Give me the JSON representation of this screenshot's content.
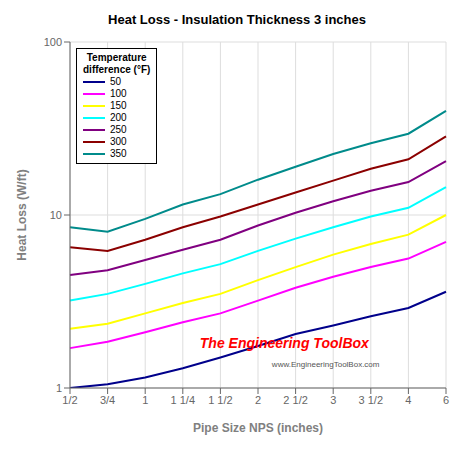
{
  "chart_data": {
    "type": "line",
    "title": "Heat Loss - Insulation Thickness 3 inches",
    "x_label": "Pipe Size NPS (inches)",
    "y_label": "Heat Loss (W/ft)",
    "categories": [
      "1/2",
      "3/4",
      "1",
      "1 1/4",
      "1 1/2",
      "2",
      "2 1/2",
      "3",
      "3 1/2",
      "4",
      "6"
    ],
    "series": [
      {
        "name": "50",
        "color": "#00008B",
        "values": [
          1.0,
          1.05,
          1.15,
          1.3,
          1.5,
          1.75,
          2.05,
          2.3,
          2.6,
          2.9,
          3.6
        ]
      },
      {
        "name": "100",
        "color": "#FF00FF",
        "values": [
          1.7,
          1.85,
          2.1,
          2.4,
          2.7,
          3.2,
          3.8,
          4.4,
          5.0,
          5.6,
          7.0
        ]
      },
      {
        "name": "150",
        "color": "#FFFF00",
        "values": [
          2.2,
          2.35,
          2.7,
          3.1,
          3.5,
          4.2,
          5.0,
          5.9,
          6.8,
          7.7,
          10.0
        ]
      },
      {
        "name": "200",
        "color": "#00FFFF",
        "values": [
          3.2,
          3.5,
          4.0,
          4.6,
          5.2,
          6.2,
          7.3,
          8.5,
          9.8,
          11.0,
          14.5
        ]
      },
      {
        "name": "250",
        "color": "#800080",
        "values": [
          4.5,
          4.8,
          5.5,
          6.3,
          7.2,
          8.7,
          10.3,
          12.0,
          13.8,
          15.5,
          20.5
        ]
      },
      {
        "name": "300",
        "color": "#8B0000",
        "values": [
          6.5,
          6.2,
          7.2,
          8.5,
          9.8,
          11.5,
          13.5,
          15.8,
          18.5,
          21.0,
          28.5
        ]
      },
      {
        "name": "350",
        "color": "#008B8B",
        "values": [
          8.5,
          8.0,
          9.5,
          11.5,
          13.2,
          16.0,
          19.0,
          22.5,
          26.0,
          29.5,
          40.0
        ]
      }
    ],
    "ylim": [
      1,
      100
    ],
    "yticks": [
      1,
      10,
      100
    ],
    "log": "y",
    "grid": true,
    "legend": "upper left",
    "legend_title": [
      "Temperature",
      "difference (°F)"
    ],
    "annotations": [
      {
        "text": "The Engineering ToolBox",
        "color": "red"
      },
      {
        "text": "www.EngineeringToolBox.com",
        "color": "#555555"
      }
    ]
  }
}
